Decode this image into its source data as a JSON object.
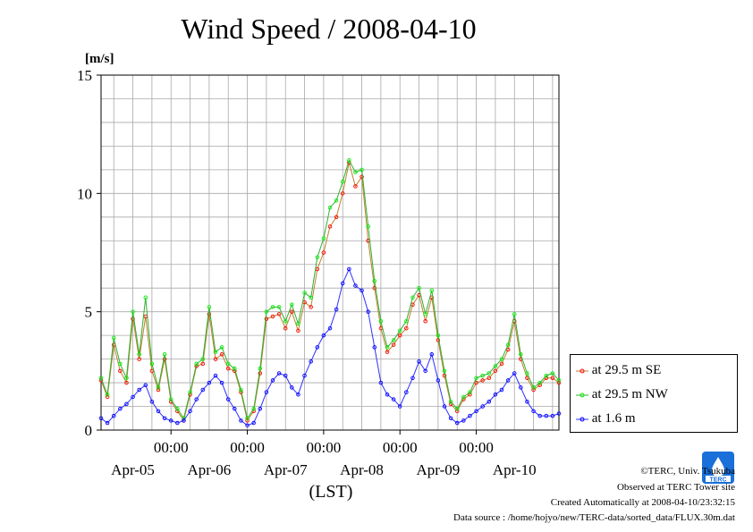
{
  "chart_data": {
    "type": "line",
    "title": "Wind Speed / 2008-04-10",
    "ylabel": "[m/s]",
    "xlabel": "(LST)",
    "ylim": [
      0,
      15
    ],
    "yticks": [
      0,
      5,
      10,
      15
    ],
    "xlim": [
      0,
      144
    ],
    "time_ticks": [
      "00:00",
      "00:00",
      "00:00",
      "00:00",
      "00:00"
    ],
    "time_tick_hours": [
      22,
      46,
      70,
      94,
      118
    ],
    "date_labels": [
      "Apr-05",
      "Apr-06",
      "Apr-07",
      "Apr-08",
      "Apr-09",
      "Apr-10"
    ],
    "date_label_hours": [
      10,
      34,
      58,
      82,
      106,
      130
    ],
    "grid": true,
    "legend_position": "right",
    "series": [
      {
        "name": "at 29.5 m SE",
        "color": "#ff0000",
        "x": [
          0,
          2,
          4,
          6,
          8,
          10,
          12,
          14,
          16,
          18,
          20,
          22,
          24,
          26,
          28,
          30,
          32,
          34,
          36,
          38,
          40,
          42,
          44,
          46,
          48,
          50,
          52,
          54,
          56,
          58,
          60,
          62,
          64,
          66,
          68,
          70,
          72,
          74,
          76,
          78,
          80,
          82,
          84,
          86,
          88,
          90,
          92,
          94,
          96,
          98,
          100,
          102,
          104,
          106,
          108,
          110,
          112,
          114,
          116,
          118,
          120,
          122,
          124,
          126,
          128,
          130,
          132,
          134,
          136,
          138,
          140,
          142,
          144
        ],
        "y": [
          2.1,
          1.4,
          3.6,
          2.5,
          2.0,
          4.7,
          3.0,
          4.8,
          2.5,
          1.7,
          3.0,
          1.2,
          0.8,
          0.4,
          1.5,
          2.7,
          2.8,
          4.9,
          3.0,
          3.2,
          2.6,
          2.5,
          1.6,
          0.4,
          0.8,
          2.4,
          4.7,
          4.8,
          4.9,
          4.3,
          5.0,
          4.2,
          5.4,
          5.2,
          6.8,
          7.5,
          8.6,
          9.0,
          10.0,
          11.3,
          10.3,
          10.7,
          8.0,
          6.0,
          4.3,
          3.3,
          3.6,
          4.0,
          4.3,
          5.3,
          5.7,
          4.6,
          5.6,
          3.8,
          2.3,
          1.1,
          0.8,
          1.3,
          1.5,
          2.0,
          2.1,
          2.2,
          2.5,
          2.8,
          3.4,
          4.6,
          3.0,
          2.2,
          1.7,
          1.9,
          2.2,
          2.2,
          2.0
        ]
      },
      {
        "name": "at 29.5 m NW",
        "color": "#00ee00",
        "x": [
          0,
          2,
          4,
          6,
          8,
          10,
          12,
          14,
          16,
          18,
          20,
          22,
          24,
          26,
          28,
          30,
          32,
          34,
          36,
          38,
          40,
          42,
          44,
          46,
          48,
          50,
          52,
          54,
          56,
          58,
          60,
          62,
          64,
          66,
          68,
          70,
          72,
          74,
          76,
          78,
          80,
          82,
          84,
          86,
          88,
          90,
          92,
          94,
          96,
          98,
          100,
          102,
          104,
          106,
          108,
          110,
          112,
          114,
          116,
          118,
          120,
          122,
          124,
          126,
          128,
          130,
          132,
          134,
          136,
          138,
          140,
          142,
          144
        ],
        "y": [
          2.2,
          1.5,
          3.9,
          2.8,
          2.2,
          5.0,
          3.2,
          5.6,
          2.8,
          1.8,
          3.2,
          1.3,
          0.9,
          0.5,
          1.6,
          2.8,
          3.0,
          5.2,
          3.3,
          3.5,
          2.8,
          2.6,
          1.7,
          0.5,
          0.9,
          2.6,
          5.0,
          5.2,
          5.2,
          4.6,
          5.3,
          4.5,
          5.8,
          5.6,
          7.3,
          8.1,
          9.4,
          9.7,
          10.5,
          11.4,
          10.9,
          11.0,
          8.6,
          6.3,
          4.6,
          3.5,
          3.8,
          4.2,
          4.6,
          5.6,
          6.0,
          4.9,
          5.9,
          4.0,
          2.5,
          1.2,
          0.9,
          1.4,
          1.6,
          2.2,
          2.3,
          2.4,
          2.7,
          3.0,
          3.6,
          4.9,
          3.2,
          2.4,
          1.8,
          2.0,
          2.3,
          2.4,
          2.1
        ]
      },
      {
        "name": "at 1.6 m",
        "color": "#0000ff",
        "x": [
          0,
          2,
          4,
          6,
          8,
          10,
          12,
          14,
          16,
          18,
          20,
          22,
          24,
          26,
          28,
          30,
          32,
          34,
          36,
          38,
          40,
          42,
          44,
          46,
          48,
          50,
          52,
          54,
          56,
          58,
          60,
          62,
          64,
          66,
          68,
          70,
          72,
          74,
          76,
          78,
          80,
          82,
          84,
          86,
          88,
          90,
          92,
          94,
          96,
          98,
          100,
          102,
          104,
          106,
          108,
          110,
          112,
          114,
          116,
          118,
          120,
          122,
          124,
          126,
          128,
          130,
          132,
          134,
          136,
          138,
          140,
          142,
          144
        ],
        "y": [
          0.5,
          0.3,
          0.6,
          0.9,
          1.1,
          1.4,
          1.7,
          1.9,
          1.2,
          0.8,
          0.5,
          0.4,
          0.3,
          0.4,
          0.8,
          1.3,
          1.7,
          2.0,
          2.3,
          2.0,
          1.3,
          0.9,
          0.4,
          0.2,
          0.3,
          0.9,
          1.6,
          2.1,
          2.4,
          2.3,
          1.8,
          1.5,
          2.3,
          2.9,
          3.5,
          4.0,
          4.3,
          5.1,
          6.2,
          6.8,
          6.1,
          5.9,
          5.0,
          3.5,
          2.0,
          1.5,
          1.3,
          1.0,
          1.6,
          2.2,
          2.9,
          2.5,
          3.2,
          2.1,
          1.0,
          0.5,
          0.3,
          0.4,
          0.6,
          0.8,
          1.0,
          1.2,
          1.5,
          1.7,
          2.1,
          2.4,
          1.8,
          1.2,
          0.8,
          0.6,
          0.6,
          0.6,
          0.7
        ]
      }
    ]
  },
  "footer": {
    "copyright": "©TERC, Univ. Tsukuba",
    "observed": "Observed at TERC Tower site",
    "created": "Created Automatically at 2008-04-10/23:32:15",
    "source": "Data source : /home/hojyo/new/TERC-data/sorted_data/FLUX.30m.dat"
  },
  "logo": {
    "text": "TERC",
    "color": "#1a6fd8"
  }
}
